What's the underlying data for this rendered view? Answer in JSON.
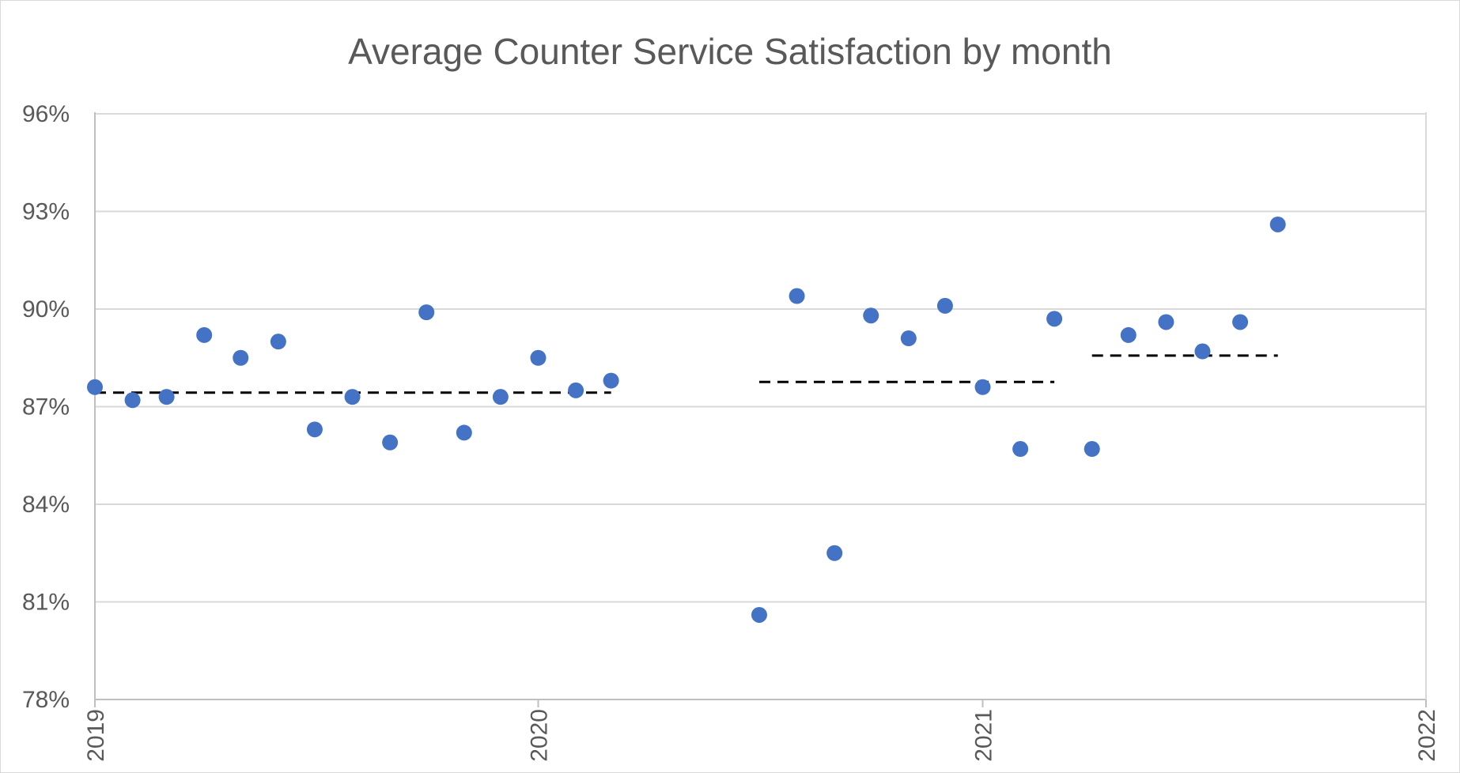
{
  "chart_data": {
    "type": "scatter",
    "title": "Average Counter Service Satisfaction by month",
    "xlabel": "",
    "ylabel": "",
    "x_axis": {
      "type": "date",
      "min": "2019-01-01",
      "max": "2022-01-01",
      "ticks": [
        {
          "value": "2019-01-01",
          "label": "2019"
        },
        {
          "value": "2020-01-01",
          "label": "2020"
        },
        {
          "value": "2021-01-01",
          "label": "2021"
        },
        {
          "value": "2022-01-01",
          "label": "2022"
        }
      ]
    },
    "y_axis": {
      "min": 0.78,
      "max": 0.96,
      "format": "percent",
      "ticks": [
        {
          "value": 0.78,
          "label": "78%"
        },
        {
          "value": 0.81,
          "label": "81%"
        },
        {
          "value": 0.84,
          "label": "84%"
        },
        {
          "value": 0.87,
          "label": "87%"
        },
        {
          "value": 0.9,
          "label": "90%"
        },
        {
          "value": 0.93,
          "label": "93%"
        },
        {
          "value": 0.96,
          "label": "96%"
        }
      ]
    },
    "grid": true,
    "legend": "none",
    "series": [
      {
        "color": "#4472C4",
        "marker": "circle",
        "points": [
          {
            "x": "2019-01-01",
            "y": 0.876
          },
          {
            "x": "2019-02-01",
            "y": 0.872
          },
          {
            "x": "2019-03-01",
            "y": 0.873
          },
          {
            "x": "2019-04-01",
            "y": 0.892
          },
          {
            "x": "2019-05-01",
            "y": 0.885
          },
          {
            "x": "2019-06-01",
            "y": 0.89
          },
          {
            "x": "2019-07-01",
            "y": 0.863
          },
          {
            "x": "2019-08-01",
            "y": 0.873
          },
          {
            "x": "2019-09-01",
            "y": 0.859
          },
          {
            "x": "2019-10-01",
            "y": 0.899
          },
          {
            "x": "2019-11-01",
            "y": 0.862
          },
          {
            "x": "2019-12-01",
            "y": 0.873
          },
          {
            "x": "2020-01-01",
            "y": 0.885
          },
          {
            "x": "2020-02-01",
            "y": 0.875
          },
          {
            "x": "2020-03-01",
            "y": 0.878
          },
          {
            "x": "2020-07-01",
            "y": 0.806
          },
          {
            "x": "2020-08-01",
            "y": 0.904
          },
          {
            "x": "2020-09-01",
            "y": 0.825
          },
          {
            "x": "2020-10-01",
            "y": 0.898
          },
          {
            "x": "2020-11-01",
            "y": 0.891
          },
          {
            "x": "2020-12-01",
            "y": 0.901
          },
          {
            "x": "2021-01-01",
            "y": 0.876
          },
          {
            "x": "2021-02-01",
            "y": 0.857
          },
          {
            "x": "2021-03-01",
            "y": 0.897
          },
          {
            "x": "2021-04-01",
            "y": 0.857
          },
          {
            "x": "2021-05-01",
            "y": 0.892
          },
          {
            "x": "2021-06-01",
            "y": 0.896
          },
          {
            "x": "2021-07-01",
            "y": 0.887
          },
          {
            "x": "2021-08-01",
            "y": 0.896
          },
          {
            "x": "2021-09-01",
            "y": 0.926
          }
        ]
      }
    ],
    "reference_lines": [
      {
        "style": "dashed",
        "color": "#000000",
        "x_start": "2019-01-01",
        "x_end": "2020-03-01",
        "y": 0.8743
      },
      {
        "style": "dashed",
        "color": "#000000",
        "x_start": "2020-07-01",
        "x_end": "2021-03-01",
        "y": 0.8776
      },
      {
        "style": "dashed",
        "color": "#000000",
        "x_start": "2021-04-01",
        "x_end": "2021-09-01",
        "y": 0.8857
      }
    ]
  }
}
